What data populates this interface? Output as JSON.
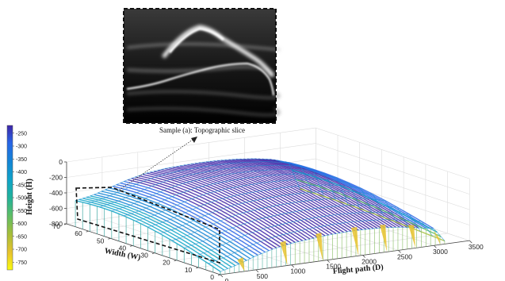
{
  "chart_data": {
    "type": "surface3d",
    "colormap": "parula",
    "grid": true,
    "inset": {
      "caption": "Sample (a): Topographic slice",
      "content": "radargram slice"
    },
    "colorbar": {
      "position": "left",
      "ticks": [
        -250,
        -300,
        -350,
        -400,
        -450,
        -500,
        -550,
        -600,
        -650,
        -700,
        -750
      ],
      "range": [
        -780,
        -220
      ]
    },
    "axes": {
      "x": {
        "label": "Flight path (D)",
        "ticks": [
          0,
          500,
          1000,
          1500,
          2000,
          2500,
          3000,
          3500
        ],
        "range": [
          0,
          3500
        ]
      },
      "y": {
        "label": "Width (W)",
        "ticks": [
          0,
          10,
          20,
          30,
          40,
          50,
          60,
          70
        ],
        "range": [
          0,
          70
        ]
      },
      "z": {
        "label": "Height (H)",
        "ticks": [
          0,
          -200,
          -400,
          -600,
          -800
        ],
        "range": [
          -800,
          0
        ]
      }
    },
    "surface": {
      "flight_path": [
        0,
        250,
        500,
        750,
        1000,
        1250,
        1500,
        1750,
        2000,
        2250,
        2500,
        2750,
        3000,
        3150
      ],
      "width": [
        0,
        10,
        20,
        30,
        40,
        50,
        60,
        66
      ],
      "height_front_edge": [
        -760,
        -700,
        -620,
        -560,
        -520,
        -500,
        -480,
        -470,
        -470,
        -480,
        -500,
        -540,
        -580,
        -760
      ],
      "height_ridge": [
        -440,
        -400,
        -330,
        -260,
        -210,
        -185,
        -175,
        -170,
        -175,
        -190,
        -215,
        -255,
        -330,
        -700
      ]
    }
  }
}
